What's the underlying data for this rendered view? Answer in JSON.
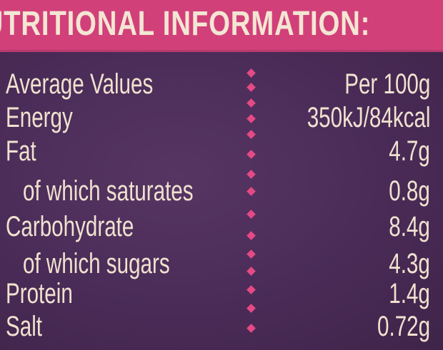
{
  "title": "NUTRITIONAL INFORMATION:",
  "table": {
    "header": [
      "Average Values",
      "Per 100g"
    ],
    "rows": [
      [
        "Energy",
        "350kJ/84kcal"
      ],
      [
        "Fat",
        "4.7g"
      ],
      [
        "of which saturates",
        "0.8g"
      ],
      [
        "Carbohydrate",
        "8.4g"
      ],
      [
        "of which sugars",
        "4.3g"
      ],
      [
        "Protein",
        "1.4g"
      ],
      [
        "Salt",
        "0.72g"
      ]
    ]
  }
}
